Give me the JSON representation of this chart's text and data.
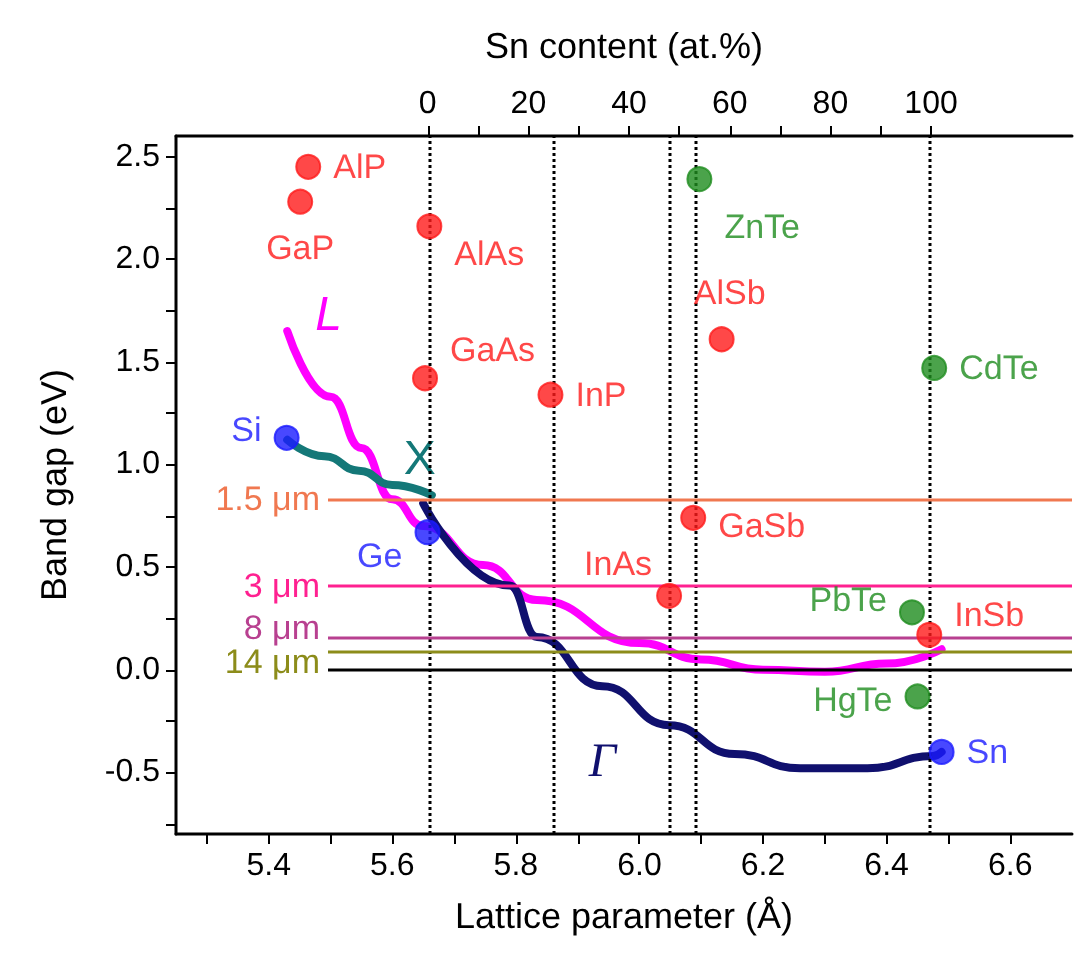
{
  "chart_data": {
    "type": "scatter",
    "xlabel": "Lattice parameter (Å)",
    "ylabel": "Band gap (eV)",
    "x2label": "Sn content (at.%)",
    "xlim": [
      5.25,
      6.7
    ],
    "xticks": [
      {
        "value": 5.3,
        "label": null
      },
      5.4,
      {
        "value": 5.5,
        "label": null
      },
      5.6,
      {
        "value": 5.7,
        "label": null
      },
      5.8,
      {
        "value": 5.9,
        "label": null
      },
      {
        "value": 6,
        "label": "6.0"
      },
      {
        "value": 6.1,
        "label": null
      },
      6.2,
      {
        "value": 6.3,
        "label": null
      },
      6.4,
      {
        "value": 6.5,
        "label": null
      },
      6.6
    ],
    "ylim": [
      -0.8,
      2.6
    ],
    "yticks": [
      {
        "value": -0.75,
        "label": null
      },
      -0.5,
      {
        "value": -0.25,
        "label": null
      },
      {
        "value": 0,
        "label": "0.0"
      },
      {
        "value": 0.25,
        "label": null
      },
      0.5,
      {
        "value": 0.75,
        "label": null
      },
      {
        "value": 1,
        "label": "1.0"
      },
      {
        "value": 1.25,
        "label": null
      },
      1.5,
      {
        "value": 1.75,
        "label": null
      },
      {
        "value": 2,
        "label": "2.0"
      },
      {
        "value": 2.25,
        "label": null
      },
      2.5
    ],
    "x2lim": [
      -50,
      128
    ],
    "x2ticks": [
      0,
      {
        "value": 10,
        "label": null
      },
      20,
      {
        "value": 30,
        "label": null
      },
      40,
      {
        "value": 50,
        "label": null
      },
      60,
      {
        "value": 70,
        "label": null
      },
      80,
      {
        "value": 90,
        "label": null
      },
      100
    ],
    "grid": false,
    "legend": false,
    "marker": "circle",
    "series": [
      {
        "name": "AlP",
        "color": "#ff1a1a",
        "x": [
          5.464
        ],
        "values": [
          2.45
        ]
      },
      {
        "name": "GaP",
        "color": "#ff1a1a",
        "x": [
          5.451
        ],
        "values": [
          2.28
        ]
      },
      {
        "name": "AlAs",
        "color": "#ff1a1a",
        "x": [
          5.66
        ],
        "values": [
          2.16
        ]
      },
      {
        "name": "GaAs",
        "color": "#ff1a1a",
        "x": [
          5.653
        ],
        "values": [
          1.42
        ]
      },
      {
        "name": "InP",
        "color": "#ff1a1a",
        "x": [
          5.856
        ],
        "values": [
          1.34
        ]
      },
      {
        "name": "ZnTe",
        "color": "#1e8c1e",
        "x": [
          6.097
        ],
        "values": [
          2.39
        ]
      },
      {
        "name": "AlSb",
        "color": "#ff1a1a",
        "x": [
          6.133
        ],
        "values": [
          1.61
        ]
      },
      {
        "name": "CdTe",
        "color": "#1e8c1e",
        "x": [
          6.477
        ],
        "values": [
          1.47
        ]
      },
      {
        "name": "Si",
        "color": "#1a1aff",
        "x": [
          5.429
        ],
        "values": [
          1.13
        ]
      },
      {
        "name": "Ge",
        "color": "#1a1aff",
        "x": [
          5.657
        ],
        "values": [
          0.67
        ]
      },
      {
        "name": "GaSb",
        "color": "#ff1a1a",
        "x": [
          6.087
        ],
        "values": [
          0.74
        ]
      },
      {
        "name": "InAs",
        "color": "#ff1a1a",
        "x": [
          6.048
        ],
        "values": [
          0.36
        ]
      },
      {
        "name": "PbTe",
        "color": "#1e8c1e",
        "x": [
          6.441
        ],
        "values": [
          0.28
        ]
      },
      {
        "name": "InSb",
        "color": "#ff1a1a",
        "x": [
          6.469
        ],
        "values": [
          0.17
        ]
      },
      {
        "name": "HgTe",
        "color": "#1e8c1e",
        "x": [
          6.45
        ],
        "values": [
          -0.13
        ]
      },
      {
        "name": "Sn",
        "color": "#1a1aff",
        "x": [
          6.489
        ],
        "values": [
          -0.4
        ]
      },
      {
        "name": "L",
        "type": "line",
        "marker": "none",
        "color": "#ff00ff",
        "x": [
          5.43,
          5.5,
          5.55,
          5.6,
          5.65,
          5.747,
          5.834,
          6.0,
          6.1,
          6.2,
          6.3,
          6.4,
          6.489
        ],
        "values": [
          1.65,
          1.33,
          1.08,
          0.83,
          0.7,
          0.51,
          0.34,
          0.13,
          0.05,
          0.0,
          -0.01,
          0.03,
          0.1
        ]
      },
      {
        "name": "X",
        "type": "line",
        "marker": "none",
        "color": "#147878",
        "x": [
          5.43,
          5.49,
          5.546,
          5.6,
          5.664
        ],
        "values": [
          1.12,
          1.04,
          0.97,
          0.9,
          0.85
        ]
      },
      {
        "name": "Γ",
        "type": "line",
        "marker": "none",
        "color": "#10106e",
        "x": [
          5.65,
          5.79,
          5.834,
          5.94,
          6.048,
          6.154,
          6.26,
          6.369,
          6.475,
          6.489
        ],
        "values": [
          0.81,
          0.41,
          0.16,
          -0.08,
          -0.27,
          -0.41,
          -0.48,
          -0.48,
          -0.42,
          -0.4
        ]
      }
    ],
    "ref_lines": [
      {
        "axis": "x",
        "value": 5.657,
        "color": "#000000",
        "line_style": "dotted"
      },
      {
        "axis": "x",
        "value": 5.857,
        "color": "#000000",
        "line_style": "dotted"
      },
      {
        "axis": "x",
        "value": 6.05,
        "color": "#000000",
        "line_style": "dotted"
      },
      {
        "axis": "x",
        "value": 6.088,
        "color": "#000000",
        "line_style": "dotted"
      },
      {
        "axis": "x",
        "value": 6.469,
        "color": "#000000",
        "line_style": "dotted"
      },
      {
        "axis": "y",
        "value": 0.83,
        "label": "1.5 μm",
        "color": "#f07850"
      },
      {
        "axis": "y",
        "value": 0.41,
        "label": "3 μm",
        "color": "#ff2090"
      },
      {
        "axis": "y",
        "value": 0.155,
        "label": "8 μm",
        "color": "#b84090"
      },
      {
        "axis": "y",
        "value": 0.09,
        "label": "14 μm",
        "color": "#8c8c1a"
      },
      {
        "axis": "y",
        "value": 0,
        "color": "#000000"
      }
    ]
  }
}
